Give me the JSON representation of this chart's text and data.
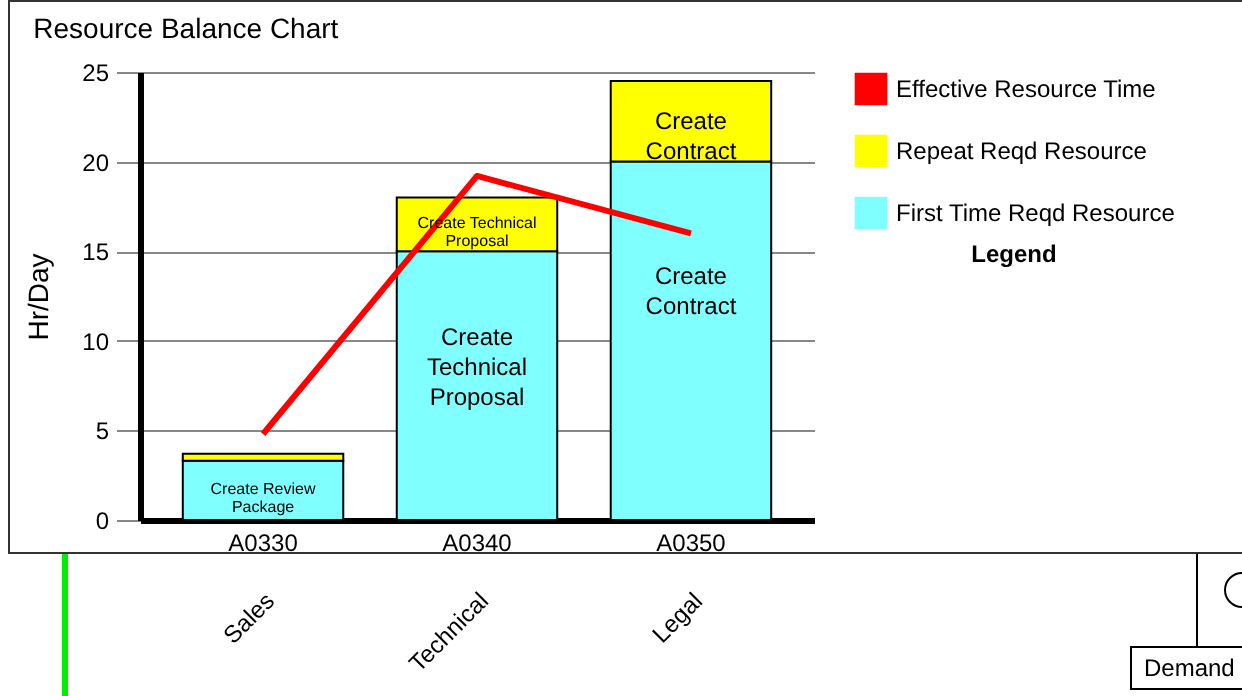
{
  "chart_data": {
    "type": "bar",
    "title": "Resource Balance Chart",
    "ylabel": "Hr/Day",
    "legend_title": "Legend",
    "categories": [
      "A0330",
      "A0340",
      "A0350"
    ],
    "stacked": true,
    "series": [
      {
        "name": "First Time Reqd Resource",
        "color": "#80ffff",
        "values": [
          3.3,
          15,
          20
        ],
        "value_labels": [
          "Create Review Package",
          "Create Technical Proposal",
          "Create Contract"
        ]
      },
      {
        "name": "Repeat Reqd Resource",
        "color": "#ffff00",
        "values": [
          0.4,
          3,
          4.5
        ],
        "value_labels": [
          null,
          "Create Technical Proposal",
          "Create Contract"
        ]
      },
      {
        "name": "Effective Resource Time",
        "type": "line",
        "color": "#ff0000",
        "values": [
          4.8,
          19.2,
          16
        ]
      }
    ],
    "ylim": [
      0,
      25
    ],
    "yticks": [
      0,
      5,
      10,
      15,
      20,
      25
    ],
    "grid": "y",
    "legend": "right",
    "annotations": [
      "Sales",
      "Technical",
      "Legal",
      "Demand"
    ]
  }
}
